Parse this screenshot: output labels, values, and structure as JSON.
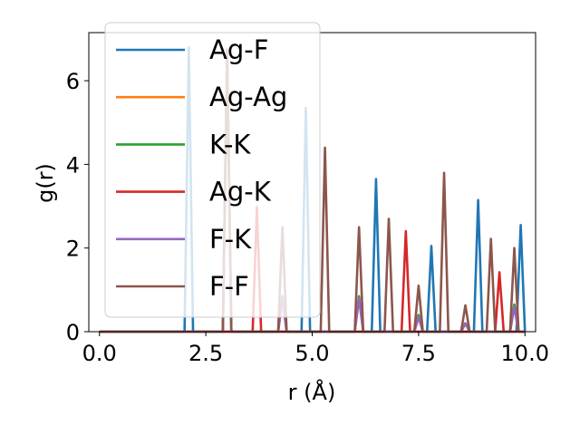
{
  "chart_data": {
    "type": "line",
    "xlabel": "r (Å)",
    "ylabel": "g(r)",
    "xlim": [
      -0.25,
      10.25
    ],
    "ylim": [
      0,
      7.15
    ],
    "xticks": [
      "0.0",
      "2.5",
      "5.0",
      "7.5",
      "10.0"
    ],
    "xtick_values": [
      0,
      2.5,
      5,
      7.5,
      10
    ],
    "yticks": [
      "0",
      "2",
      "4",
      "6"
    ],
    "ytick_values": [
      0,
      2,
      4,
      6
    ],
    "grid": false,
    "legend_position": "top-left",
    "series": [
      {
        "name": "Ag-F",
        "color": "#1f77b4",
        "peaks": [
          [
            2.1,
            6.8
          ],
          [
            4.85,
            5.35
          ],
          [
            6.5,
            3.65
          ],
          [
            7.8,
            2.05
          ],
          [
            8.9,
            3.15
          ],
          [
            9.9,
            2.55
          ]
        ]
      },
      {
        "name": "Ag-Ag",
        "color": "#ff7f0e",
        "peaks": [
          [
            3.0,
            6.7
          ],
          [
            4.3,
            0.8
          ],
          [
            6.1,
            0.8
          ],
          [
            7.5,
            0.35
          ],
          [
            8.6,
            0.2
          ],
          [
            9.75,
            0.6
          ]
        ]
      },
      {
        "name": "K-K",
        "color": "#2ca02c",
        "peaks": [
          [
            3.0,
            6.7
          ],
          [
            4.3,
            0.85
          ],
          [
            6.1,
            0.85
          ],
          [
            7.5,
            0.4
          ],
          [
            8.6,
            0.2
          ],
          [
            9.75,
            0.65
          ]
        ]
      },
      {
        "name": "Ag-K",
        "color": "#d62728",
        "peaks": [
          [
            3.7,
            2.98
          ],
          [
            7.2,
            2.4
          ],
          [
            9.4,
            1.42
          ]
        ]
      },
      {
        "name": "F-K",
        "color": "#9467bd",
        "peaks": [
          [
            3.0,
            6.7
          ],
          [
            4.3,
            0.8
          ],
          [
            6.1,
            0.8
          ],
          [
            7.5,
            0.35
          ],
          [
            8.6,
            0.2
          ],
          [
            9.75,
            0.6
          ]
        ]
      },
      {
        "name": "F-F",
        "color": "#8c564b",
        "peaks": [
          [
            3.0,
            6.75
          ],
          [
            4.3,
            2.5
          ],
          [
            5.3,
            4.4
          ],
          [
            6.1,
            2.5
          ],
          [
            6.8,
            2.7
          ],
          [
            7.5,
            1.1
          ],
          [
            8.1,
            3.8
          ],
          [
            8.6,
            0.63
          ],
          [
            9.2,
            2.22
          ],
          [
            9.75,
            2.0
          ]
        ]
      }
    ]
  }
}
